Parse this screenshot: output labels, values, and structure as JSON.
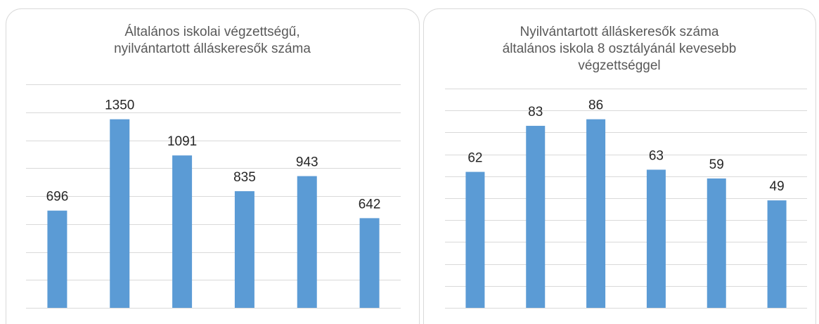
{
  "chart_data": [
    {
      "type": "bar",
      "title": [
        "Általános iskolai végzettségű,",
        "nyilvántartott álláskeresők száma"
      ],
      "values": [
        696,
        1350,
        1091,
        835,
        943,
        642
      ],
      "color": "#5b9bd5",
      "ylim": [
        0,
        1600
      ],
      "yticks": [
        0,
        200,
        400,
        600,
        800,
        1000,
        1200,
        1400,
        1600
      ],
      "grid": true
    },
    {
      "type": "bar",
      "title": [
        "Nyilvántartott álláskeresők száma",
        "általános iskola 8 osztályánál kevesebb",
        "végzettséggel"
      ],
      "values": [
        62,
        83,
        86,
        63,
        59,
        49
      ],
      "color": "#5b9bd5",
      "ylim": [
        0,
        100
      ],
      "yticks": [
        0,
        10,
        20,
        30,
        40,
        50,
        60,
        70,
        80,
        90,
        100
      ],
      "grid": true
    }
  ]
}
